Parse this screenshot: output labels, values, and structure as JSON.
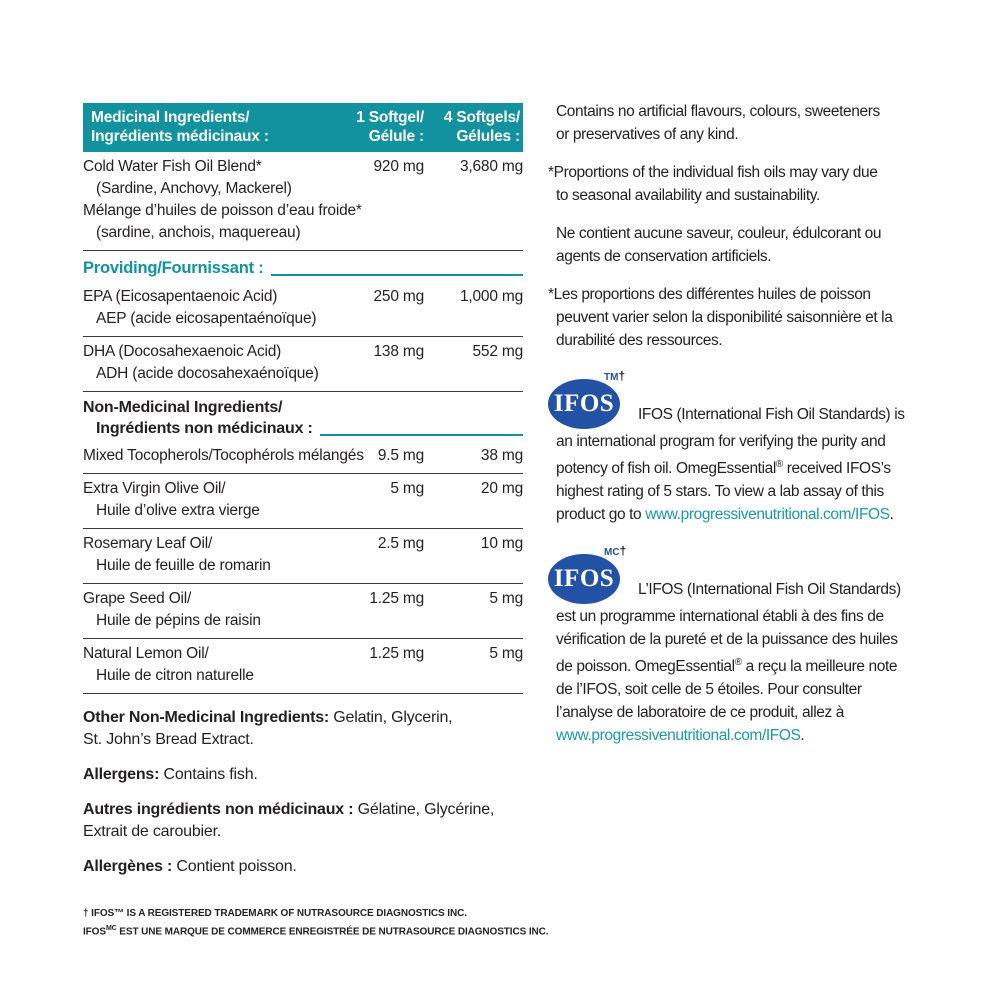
{
  "colors": {
    "teal_header_bg": "#11929E",
    "teal_text": "#11929E",
    "link_teal": "#1B98A6",
    "ifos_blue": "#2351A5",
    "text_black": "#231F20",
    "separator": "#3E3A3B"
  },
  "table": {
    "header": {
      "name_en": "Medicinal Ingredients/",
      "name_fr": "Ingrédients médicinaux :",
      "col1_line1": "1 Softgel/",
      "col1_line2": "Gélule :",
      "col4_line1": "4 Softgels/",
      "col4_line2": "Gélules :"
    },
    "providing": "Providing/Fournissant :",
    "nonmed_l1": "Non-Medicinal Ingredients/",
    "nonmed_l2": "Ingrédients non médicinaux :",
    "rows": [
      {
        "lines": [
          "Cold Water Fish Oil Blend*",
          "(Sardine, Anchovy, Mackerel)",
          "Mélange d’huiles de poisson d’eau froide*",
          "(sardine, anchois, maquereau)"
        ],
        "v1": "920 mg",
        "v4": "3,680 mg"
      },
      {
        "lines": [
          "EPA (Eicosapentaenoic Acid)",
          "AEP (acide eicosapentaénoïque)"
        ],
        "v1": "250 mg",
        "v4": "1,000 mg"
      },
      {
        "lines": [
          "DHA (Docosahexaenoic Acid)",
          "ADH (acide docosahexaénoïque)"
        ],
        "v1": "138 mg",
        "v4": "552 mg"
      },
      {
        "lines": [
          "Mixed Tocopherols/Tocophérols mélangés"
        ],
        "v1": "9.5 mg",
        "v4": "38 mg"
      },
      {
        "lines": [
          "Extra Virgin Olive Oil/",
          "Huile d’olive extra vierge"
        ],
        "v1": "5 mg",
        "v4": "20 mg"
      },
      {
        "lines": [
          "Rosemary Leaf Oil/",
          "Huile de feuille de romarin"
        ],
        "v1": "2.5 mg",
        "v4": "10 mg"
      },
      {
        "lines": [
          "Grape Seed Oil/",
          "Huile de pépins de raisin"
        ],
        "v1": "1.25 mg",
        "v4": "5 mg"
      },
      {
        "lines": [
          "Natural Lemon Oil/",
          "Huile de citron naturelle"
        ],
        "v1": "1.25 mg",
        "v4": "5 mg"
      }
    ]
  },
  "notes": {
    "other_label": "Other Non-Medicinal Ingredients:",
    "other_text": " Gelatin, Glycerin,\nSt. John’s Bread Extract.",
    "allergens_label": "Allergens:",
    "allergens_text": " Contains fish.",
    "autres_label": "Autres ingrédients non médicinaux :",
    "autres_text": " Gélatine, Glycérine,\nExtrait de caroubier.",
    "allergenes_label": "Allergènes :",
    "allergenes_text": " Contient poisson."
  },
  "footnotes": {
    "en": "† IFOS™ IS A REGISTERED TRADEMARK OF NUTRASOURCE DIAGNOSTICS INC.",
    "fr_pre": "IFOS",
    "fr_sup": "MC",
    "fr_rest": " EST UNE MARQUE DE COMMERCE ENREGISTRÉE DE NUTRASOURCE DIAGNOSTICS INC."
  },
  "right": {
    "p1": "Contains no artificial flavours, colours, sweeteners\nor preservatives of any kind.",
    "p2": "*Proportions of the individual fish oils may vary due\nto seasonal availability and sustainability.",
    "p3": "Ne contient aucune saveur, couleur, édulcorant ou\nagents de conservation artificiels.",
    "p4": "*Les proportions des différentes huiles de poisson\npeuvent varier selon la disponibilité saisonnière et la\ndurabilité des ressources.",
    "ifos_en": {
      "logo_text": "IFOS",
      "sup": "TM",
      "dagger": "†",
      "intro": "IFOS (International Fish Oil Standards) is",
      "body_a": "an international program for verifying the purity and\npotency of fish oil. OmegEssential",
      "reg": "®",
      "body_b": " received IFOS’s\nhighest rating of 5 stars. To view a lab assay of this\nproduct go to ",
      "link": "www.progressivenutritional.com/IFOS",
      "after": "."
    },
    "ifos_fr": {
      "logo_text": "IFOS",
      "sup": "MC",
      "dagger": "†",
      "intro": "L’IFOS (International Fish Oil Standards)",
      "body_a": "est un programme international établi à des fins de\nvérification de la pureté et de la puissance des huiles\nde poisson. OmegEssential",
      "reg": "®",
      "body_b": " a reçu la meilleure note\nde l’IFOS, soit celle de 5 étoiles. Pour consulter\nl’analyse de laboratoire de ce produit, allez à\n",
      "link": "www.progressivenutritional.com/IFOS",
      "after": "."
    }
  }
}
